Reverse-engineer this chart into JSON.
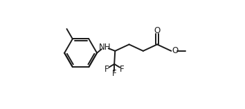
{
  "background_color": "#ffffff",
  "line_color": "#1a1a1a",
  "line_width": 1.4,
  "font_size": 8.5,
  "figsize": [
    3.54,
    1.58
  ],
  "dpi": 100,
  "xlim": [
    0,
    10
  ],
  "ylim": [
    -2.5,
    4.5
  ]
}
